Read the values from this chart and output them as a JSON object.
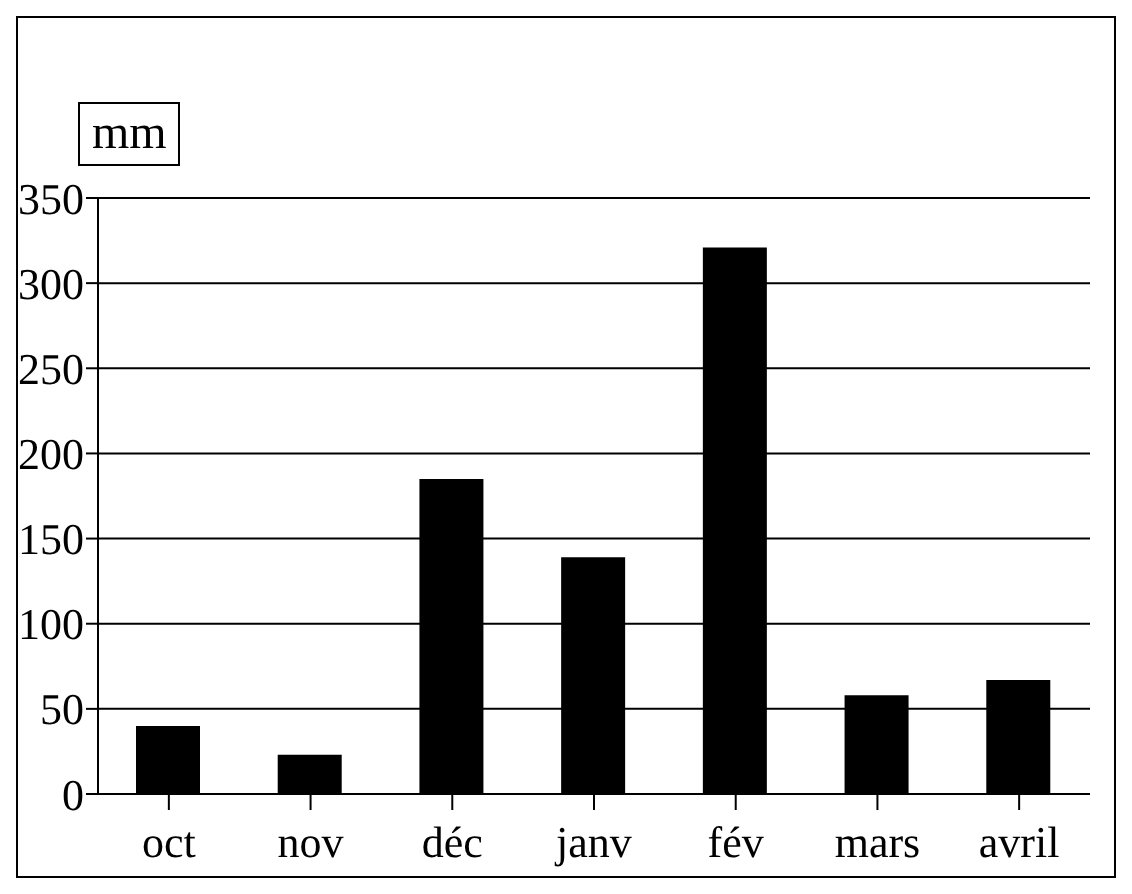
{
  "chart_data": {
    "type": "bar",
    "ylabel": "mm",
    "categories": [
      "oct",
      "nov",
      "déc",
      "janv",
      "fév",
      "mars",
      "avril"
    ],
    "values": [
      40,
      23,
      185,
      139,
      321,
      58,
      67
    ],
    "color": "#000000",
    "ylim": [
      0,
      350
    ],
    "yticks": [
      0,
      50,
      100,
      150,
      200,
      250,
      300,
      350
    ],
    "grid": "y"
  }
}
